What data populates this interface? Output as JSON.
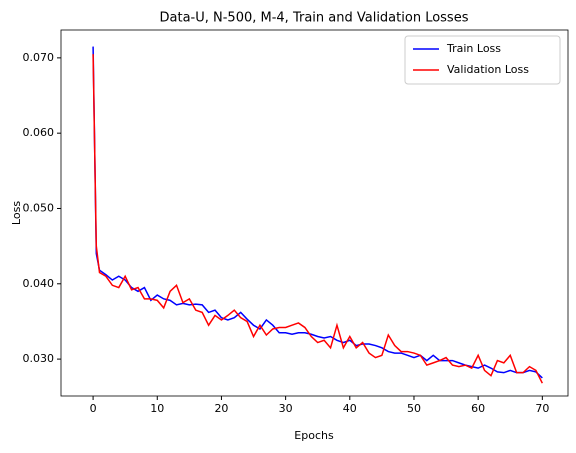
{
  "chart_data": {
    "type": "line",
    "title": "Data-U, N-500, M-4, Train and Validation Losses",
    "xlabel": "Epochs",
    "ylabel": "Loss",
    "x": [
      0,
      0.5,
      1,
      2,
      3,
      4,
      5,
      6,
      7,
      8,
      9,
      10,
      11,
      12,
      13,
      14,
      15,
      16,
      17,
      18,
      19,
      20,
      21,
      22,
      23,
      24,
      25,
      26,
      27,
      28,
      29,
      30,
      31,
      32,
      33,
      34,
      35,
      36,
      37,
      38,
      39,
      40,
      41,
      42,
      43,
      44,
      45,
      46,
      47,
      48,
      49,
      50,
      51,
      52,
      53,
      54,
      55,
      56,
      57,
      58,
      59,
      60,
      61,
      62,
      63,
      64,
      65,
      66,
      67,
      68,
      69,
      70
    ],
    "series": [
      {
        "name": "Train Loss",
        "color": "#0000ff",
        "values": [
          0.0715,
          0.044,
          0.0418,
          0.0412,
          0.0405,
          0.041,
          0.0405,
          0.0395,
          0.039,
          0.0395,
          0.0378,
          0.0385,
          0.038,
          0.0378,
          0.0372,
          0.0374,
          0.0372,
          0.0373,
          0.0372,
          0.0362,
          0.0365,
          0.0355,
          0.0352,
          0.0355,
          0.0362,
          0.0353,
          0.0345,
          0.034,
          0.0352,
          0.0345,
          0.0335,
          0.0335,
          0.0333,
          0.0335,
          0.0335,
          0.0333,
          0.033,
          0.0328,
          0.033,
          0.0325,
          0.0322,
          0.0325,
          0.0318,
          0.032,
          0.032,
          0.0318,
          0.0315,
          0.031,
          0.0308,
          0.0308,
          0.0305,
          0.0302,
          0.0305,
          0.0298,
          0.0305,
          0.0298,
          0.0298,
          0.0298,
          0.0295,
          0.0292,
          0.029,
          0.0288,
          0.0292,
          0.0288,
          0.0283,
          0.0282,
          0.0285,
          0.0282,
          0.0282,
          0.0285,
          0.0283,
          0.0275
        ]
      },
      {
        "name": "Validation Loss",
        "color": "#ff0000",
        "values": [
          0.0705,
          0.045,
          0.0415,
          0.041,
          0.0398,
          0.0395,
          0.041,
          0.0392,
          0.0395,
          0.038,
          0.038,
          0.0378,
          0.0368,
          0.039,
          0.0398,
          0.0375,
          0.038,
          0.0365,
          0.0362,
          0.0345,
          0.0358,
          0.0352,
          0.0358,
          0.0365,
          0.0355,
          0.035,
          0.033,
          0.0345,
          0.0332,
          0.034,
          0.0342,
          0.0342,
          0.0345,
          0.0348,
          0.0342,
          0.033,
          0.0322,
          0.0325,
          0.0315,
          0.0345,
          0.0315,
          0.033,
          0.0315,
          0.0322,
          0.0308,
          0.0302,
          0.0305,
          0.0332,
          0.0318,
          0.031,
          0.031,
          0.0308,
          0.0305,
          0.0292,
          0.0295,
          0.0298,
          0.0302,
          0.0292,
          0.029,
          0.0292,
          0.0288,
          0.0305,
          0.0285,
          0.0278,
          0.0298,
          0.0295,
          0.0305,
          0.0282,
          0.0282,
          0.029,
          0.0285,
          0.0268
        ]
      }
    ],
    "xlim": [
      -5,
      74
    ],
    "ylim": [
      0.0251,
      0.0737
    ],
    "xticks": [
      0,
      10,
      20,
      30,
      40,
      50,
      60,
      70
    ],
    "yticks": [
      {
        "value": 0.03,
        "label": "0.030"
      },
      {
        "value": 0.04,
        "label": "0.040"
      },
      {
        "value": 0.05,
        "label": "0.050"
      },
      {
        "value": 0.06,
        "label": "0.060"
      },
      {
        "value": 0.07,
        "label": "0.070"
      }
    ],
    "legend": "upper right",
    "grid": false
  }
}
